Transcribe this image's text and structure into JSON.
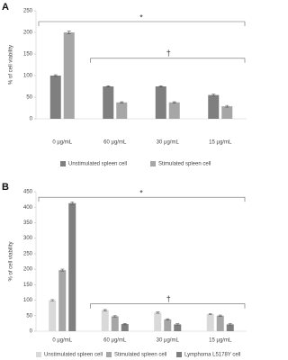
{
  "chart_data": [
    {
      "type": "bar",
      "panel": "A",
      "ylabel": "% of cell viability",
      "categories": [
        "0 µg/mL",
        "60 µg/mL",
        "30 µg/mL",
        "15 µg/mL"
      ],
      "series": [
        {
          "name": "Unstimulated spleen cell",
          "color": "#7f7f7f",
          "values": [
            100,
            75,
            75,
            55
          ],
          "errors": [
            2,
            1.5,
            1.5,
            2
          ]
        },
        {
          "name": "Stimulated spleen cell",
          "color": "#a6a6a6",
          "values": [
            200,
            38,
            38,
            29
          ],
          "errors": [
            3,
            1.5,
            1.5,
            2
          ]
        }
      ],
      "ylim": [
        0,
        250
      ],
      "yticks": [
        0,
        50,
        100,
        150,
        200,
        250
      ],
      "annotations": [
        "*",
        "†"
      ]
    },
    {
      "type": "bar",
      "panel": "B",
      "ylabel": "% of cell viability",
      "categories": [
        "0 µg/mL",
        "60 µg/mL",
        "30 µg/mL",
        "15 µg/mL"
      ],
      "series": [
        {
          "name": "Unstimulated spleen cell",
          "color": "#d9d9d9",
          "values": [
            100,
            68,
            60,
            55
          ],
          "errors": [
            2,
            2,
            2,
            2
          ]
        },
        {
          "name": "Stimulated spleen cell",
          "color": "#a6a6a6",
          "values": [
            197,
            48,
            38,
            50
          ],
          "errors": [
            3,
            2,
            2,
            2
          ]
        },
        {
          "name": "Lymphoma L5178Y cell",
          "color": "#7f7f7f",
          "values": [
            413,
            23,
            22,
            22
          ],
          "errors": [
            4,
            2,
            2,
            2
          ]
        }
      ],
      "ylim": [
        0,
        450
      ],
      "yticks": [
        0,
        50,
        100,
        150,
        200,
        250,
        300,
        350,
        400,
        450
      ],
      "annotations": [
        "*",
        "†"
      ]
    }
  ]
}
